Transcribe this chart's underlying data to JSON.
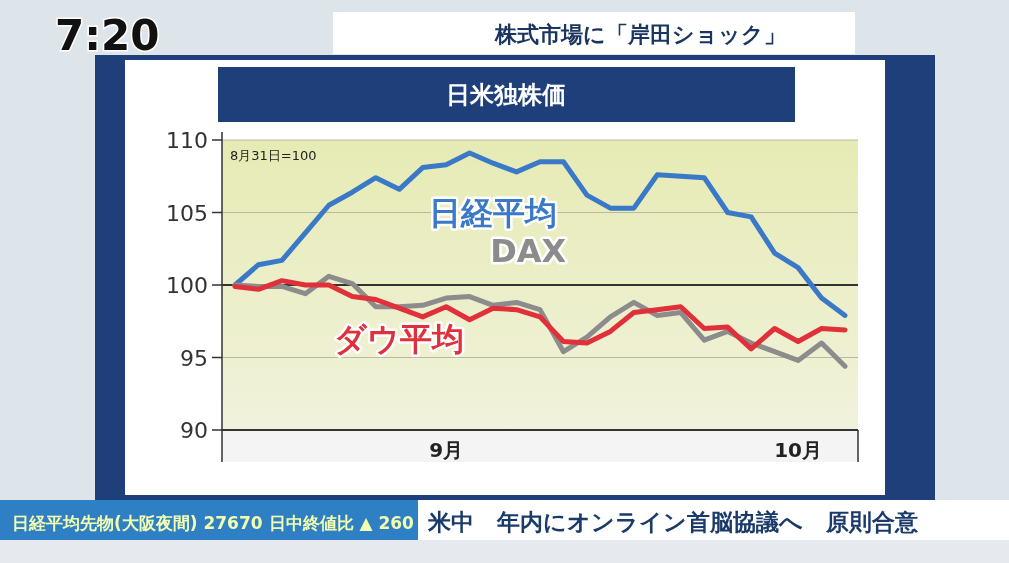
{
  "chart_data": {
    "type": "line",
    "title": "日米独株価",
    "subtitle": "株式市場に「岸田ショック」",
    "annotations": [
      "8月31日=100",
      "7:20",
      "日経平均先物(大阪夜間) 27670 日中終値比 ▲ 260",
      "米中　年内にオンライン首脳協議へ　原則合意"
    ],
    "categories": [
      null,
      null,
      null,
      null,
      null,
      null,
      null,
      null,
      null,
      "9月",
      null,
      null,
      null,
      null,
      null,
      null,
      null,
      null,
      null,
      null,
      null,
      null,
      null,
      null,
      "10月",
      null,
      null
    ],
    "series": [
      {
        "name": "日経平均",
        "color": "#3a78c8",
        "values": [
          100,
          101.4,
          101.7,
          103.6,
          105.5,
          106.4,
          107.4,
          106.6,
          108.1,
          108.3,
          109.1,
          108.4,
          107.8,
          108.5,
          108.5,
          106.2,
          105.3,
          105.3,
          107.6,
          107.5,
          107.4,
          105.0,
          104.7,
          102.2,
          101.2,
          99.1,
          97.9
        ]
      },
      {
        "name": "DAX",
        "color": "#8c8c8c",
        "values": [
          100,
          99.9,
          99.9,
          99.4,
          100.6,
          100.1,
          98.5,
          98.5,
          98.6,
          99.1,
          99.2,
          98.6,
          98.8,
          98.3,
          95.4,
          96.4,
          97.8,
          98.8,
          97.9,
          98.1,
          96.2,
          96.8,
          96.0,
          95.4,
          94.8,
          96.0,
          94.4
        ]
      },
      {
        "name": "ダウ平均",
        "color": "#e0303a",
        "values": [
          99.9,
          99.7,
          100.3,
          100,
          100,
          99.2,
          99.0,
          98.4,
          97.8,
          98.5,
          97.6,
          98.4,
          98.3,
          97.8,
          96.1,
          96.0,
          96.8,
          98.1,
          98.3,
          98.5,
          97.0,
          97.1,
          95.6,
          97.0,
          96.1,
          97.0,
          96.9
        ]
      }
    ],
    "ref_lines": [
      {
        "axis": "y",
        "value": 100,
        "color": "#333333"
      }
    ],
    "ylim": [
      90,
      110
    ],
    "yticks": [
      90,
      95,
      100,
      105,
      110
    ],
    "grid": "y",
    "marker": "none",
    "line_style": "solid",
    "legend": false
  }
}
